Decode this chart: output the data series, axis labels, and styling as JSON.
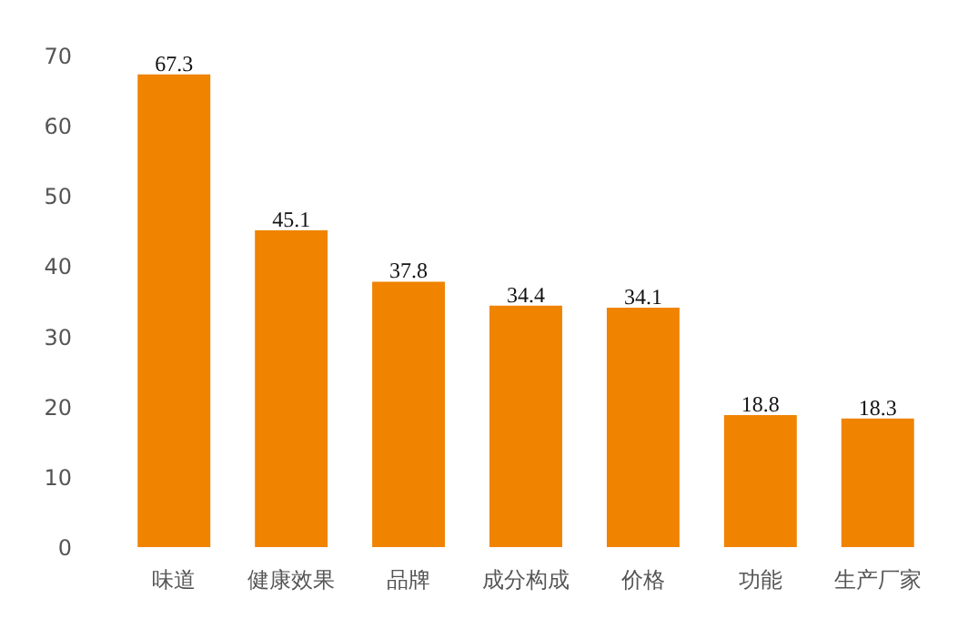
{
  "chart_data": {
    "type": "bar",
    "categories": [
      "味道",
      "健康效果",
      "品牌",
      "成分构成",
      "价格",
      "功能",
      "生产厂家"
    ],
    "values": [
      67.3,
      45.1,
      37.8,
      34.4,
      34.1,
      18.8,
      18.3
    ],
    "color": "#f08300",
    "ylim": [
      0,
      70
    ],
    "yticks": [
      0,
      10,
      20,
      30,
      40,
      50,
      60,
      70
    ],
    "grid": false,
    "data_labels": true
  }
}
